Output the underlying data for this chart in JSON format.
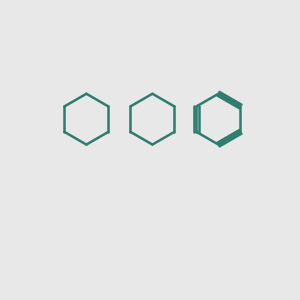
{
  "bond_color": "#2d7d6e",
  "oxygen_color": "#ff0000",
  "background_color": "#e8e8e8",
  "line_width": 1.8,
  "figsize": [
    3.0,
    3.0
  ],
  "dpi": 100
}
